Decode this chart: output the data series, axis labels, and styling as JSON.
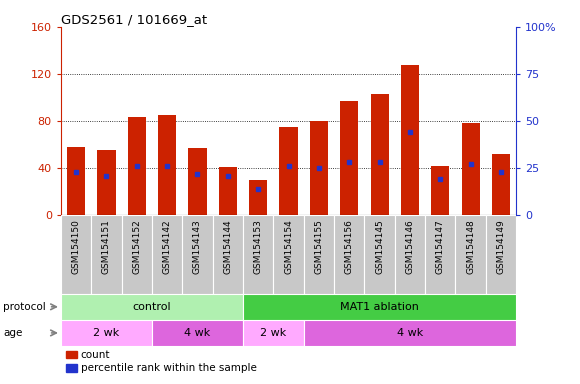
{
  "title": "GDS2561 / 101669_at",
  "samples": [
    "GSM154150",
    "GSM154151",
    "GSM154152",
    "GSM154142",
    "GSM154143",
    "GSM154144",
    "GSM154153",
    "GSM154154",
    "GSM154155",
    "GSM154156",
    "GSM154145",
    "GSM154146",
    "GSM154147",
    "GSM154148",
    "GSM154149"
  ],
  "counts": [
    58,
    55,
    83,
    85,
    57,
    41,
    30,
    75,
    80,
    97,
    103,
    128,
    42,
    78,
    52
  ],
  "percentile_ranks": [
    23,
    21,
    26,
    26,
    22,
    21,
    14,
    26,
    25,
    28,
    28,
    44,
    19,
    27,
    23
  ],
  "ylim_left": [
    0,
    160
  ],
  "ylim_right": [
    0,
    100
  ],
  "yticks_left": [
    0,
    40,
    80,
    120,
    160
  ],
  "yticks_right": [
    0,
    25,
    50,
    75,
    100
  ],
  "ytick_labels_right": [
    "0",
    "25",
    "50",
    "75",
    "100%"
  ],
  "bar_color": "#cc2200",
  "blue_color": "#2233cc",
  "xtick_bg": "#c8c8c8",
  "protocol_groups": [
    {
      "label": "control",
      "start": 0,
      "end": 5,
      "color": "#b0f0b0"
    },
    {
      "label": "MAT1 ablation",
      "start": 6,
      "end": 14,
      "color": "#44cc44"
    }
  ],
  "age_groups": [
    {
      "label": "2 wk",
      "start": 0,
      "end": 2,
      "color": "#ffaaff"
    },
    {
      "label": "4 wk",
      "start": 3,
      "end": 5,
      "color": "#dd66dd"
    },
    {
      "label": "2 wk",
      "start": 6,
      "end": 7,
      "color": "#ffaaff"
    },
    {
      "label": "4 wk",
      "start": 8,
      "end": 14,
      "color": "#dd66dd"
    }
  ],
  "protocol_label": "protocol",
  "age_label": "age",
  "legend_count_label": "count",
  "legend_pct_label": "percentile rank within the sample",
  "grid_yticks": [
    40,
    80,
    120
  ],
  "bar_width": 0.6
}
